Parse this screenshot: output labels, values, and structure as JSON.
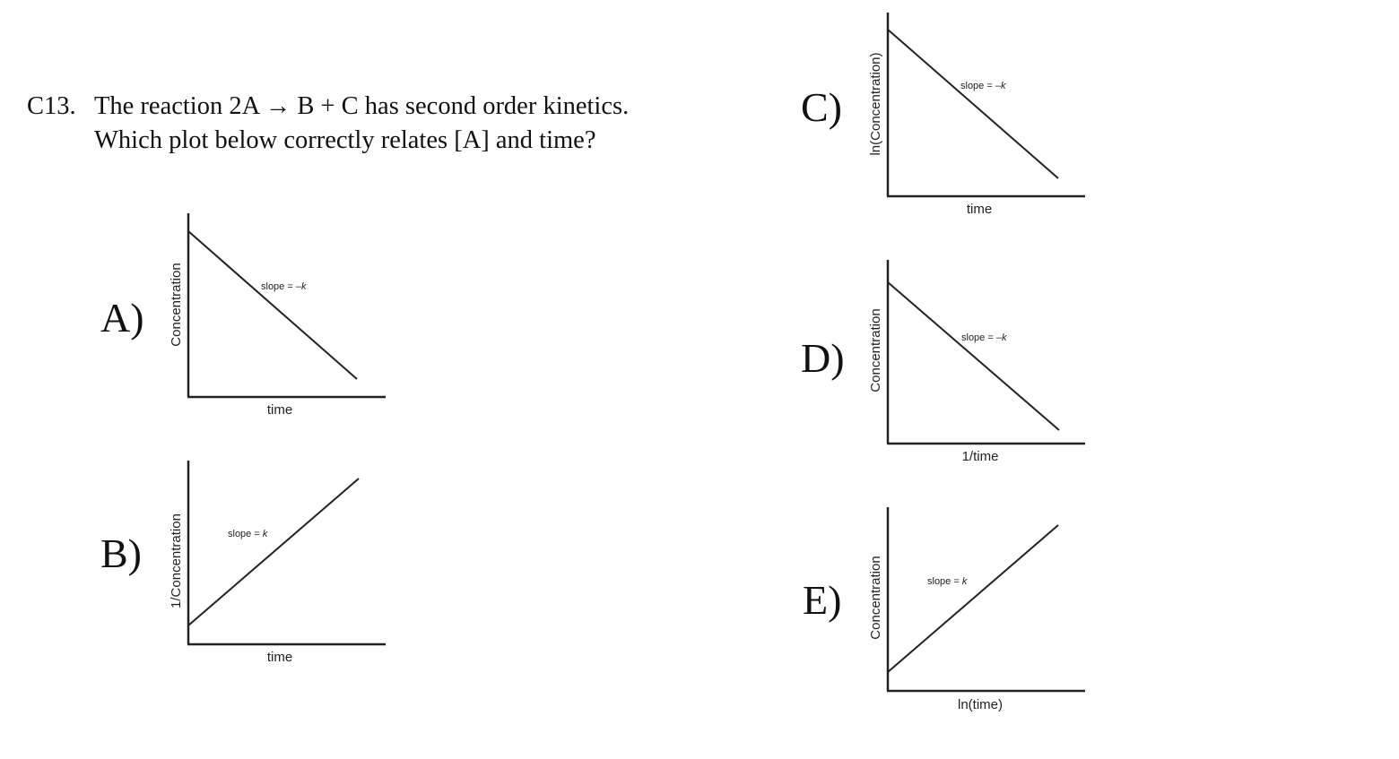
{
  "question": {
    "number": "C13.",
    "text": "The reaction 2A → B + C has second order kinetics. Which plot below correctly relates [A] and time?"
  },
  "options": [
    {
      "letter": "A)",
      "ylabel": "Concentration",
      "xlabel": "time",
      "slope_text": "slope = –",
      "slope_k": "k",
      "trend": "decreasing"
    },
    {
      "letter": "B)",
      "ylabel": "1/Concentration",
      "xlabel": "time",
      "slope_text": "slope = ",
      "slope_k": "k",
      "trend": "increasing"
    },
    {
      "letter": "C)",
      "ylabel": "ln(Concentration)",
      "xlabel": "time",
      "slope_text": "slope = –",
      "slope_k": "k",
      "trend": "decreasing"
    },
    {
      "letter": "D)",
      "ylabel": "Concentration",
      "xlabel": "1/time",
      "slope_text": "slope = –",
      "slope_k": "k",
      "trend": "decreasing"
    },
    {
      "letter": "E)",
      "ylabel": "Concentration",
      "xlabel": "ln(time)",
      "slope_text": "slope = ",
      "slope_k": "k",
      "trend": "increasing"
    }
  ]
}
